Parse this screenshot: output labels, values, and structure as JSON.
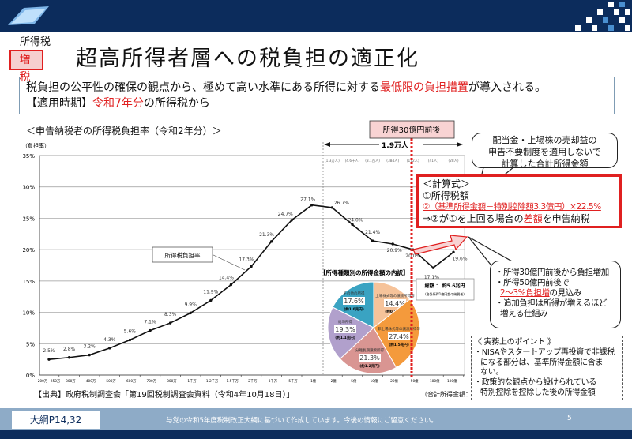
{
  "header": {
    "category": "所得税",
    "badge": "増 税",
    "title": "超高所得者層への税負担の適正化"
  },
  "summary": {
    "line1_pre": "税負担の公平性の確保の観点から、極めて高い水準にある所得に対する",
    "line1_highlight": "最低限の負担措置",
    "line1_post": "が導入される。",
    "line2_label": "【適用時期】",
    "line2_highlight": "令和7年分",
    "line2_post": "の所得税から"
  },
  "chart_data": {
    "type": "line",
    "title": "＜申告納税者の所得税負担率（令和2年分）＞",
    "ylabel": "（負担率）",
    "xlabel": "（合計所得金額：円）",
    "ylim": [
      0,
      35
    ],
    "yticks": [
      "0%",
      "5%",
      "10%",
      "15%",
      "20%",
      "25%",
      "30%",
      "35%"
    ],
    "categories": [
      "200万~250万",
      "~300万",
      "~400万",
      "~500万",
      "~600万",
      "~700万",
      "~800万",
      "~1千万",
      "~1.2千万",
      "~1.5千万",
      "~2千万",
      "~3千万",
      "~5千万",
      "~1億",
      "~2億",
      "~5億",
      "~10億",
      "~20億",
      "~50億",
      "~100億",
      "100億~"
    ],
    "series": [
      {
        "name": "所得税負担率",
        "values": [
          2.5,
          2.8,
          3.2,
          4.3,
          5.6,
          7.1,
          8.3,
          9.9,
          11.9,
          14.4,
          17.3,
          21.3,
          24.7,
          27.1,
          26.7,
          24.0,
          21.4,
          20.9,
          20.0,
          17.1,
          19.6
        ]
      }
    ],
    "value_labels": [
      "2.5%",
      "2.8%",
      "3.2%",
      "4.3%",
      "5.6%",
      "7.1%",
      "8.3%",
      "9.9%",
      "11.9%",
      "14.4%",
      "17.3%",
      "21.3%",
      "24.7%",
      "27.1%",
      "26.7%",
      "24.0%",
      "21.4%",
      "20.9%",
      "20.0%",
      "17.1%",
      "19.6%"
    ],
    "headcounts": [
      "(1.3万人)",
      "(4.6千人)",
      "(8.1百人)",
      "(384人)",
      "(172人)",
      "(41人)",
      "(28人)"
    ],
    "headcount_total": "1.9万人",
    "threshold_label": "所得30億円前後",
    "series_label": "所得税負担率"
  },
  "pie": {
    "title": "【所得種類別の所得金額の内訳】",
    "total": "総額 ： 約5.6兆円",
    "total_note": "(合計所得1億円超の納税者)",
    "slices": [
      {
        "name": "上場株式等の譲渡所得等",
        "pct": 14.4,
        "label": "14.4%",
        "amount": "(約0.8兆円)",
        "color": "#f6c39a"
      },
      {
        "name": "非上場株式等の譲渡所得等",
        "pct": 27.4,
        "label": "27.4%",
        "amount": "(約1.5兆円)",
        "color": "#f49a3c"
      },
      {
        "name": "分離長期譲渡所得",
        "pct": 21.3,
        "label": "21.3%",
        "amount": "(約1.2兆円)",
        "color": "#d99592"
      },
      {
        "name": "給与所得",
        "pct": 19.3,
        "label": "19.3%",
        "amount": "(約1.1兆円)",
        "color": "#b1a0cc"
      },
      {
        "name": "その他の所得",
        "pct": 17.6,
        "label": "17.6%",
        "amount": "(約1.0兆円)",
        "color": "#3aa3c2"
      }
    ]
  },
  "bubble_top": {
    "l1": "配当金・上場株の売却益の",
    "l2": "申告不要制度を適用しないで",
    "l3": "計算した合計所得金額"
  },
  "calc": {
    "title": "＜計算式＞",
    "l1": "①所得税額",
    "l2": "②（基準所得金額－特別控除額3.3億円）×22.5%",
    "l3_pre": "⇒②が①を上回る場合の",
    "l3_hl": "差額",
    "l3_post": "を申告納税"
  },
  "bubble_bottom": {
    "l1": "・所得30億円前後から負担増加",
    "l2": "・所得50億円前後で",
    "l3_hl": "2～3%負担増",
    "l3_post": "の見込み",
    "l4": "・追加負担は所得が増えるほど",
    "l5": "増える仕組み"
  },
  "points": {
    "title": "《 実務上のポイント 》",
    "l1": "・NISAやスタートアップ再投資で非課税",
    "l2": "になる部分は、基準所得金額に含ま",
    "l3": "ない。",
    "l4": "・政策的な観点から設けられている",
    "l5": "特別控除を控除した後の所得金額"
  },
  "source": "【出典】政府税制調査会「第19回税制調査会資料（令和4年10月18日）」",
  "footer": {
    "ref": "大綱P14,32",
    "note": "与党の令和5年度税制改正大綱に基づいて作成しています。今後の情報にご留意ください。",
    "page": "5"
  }
}
